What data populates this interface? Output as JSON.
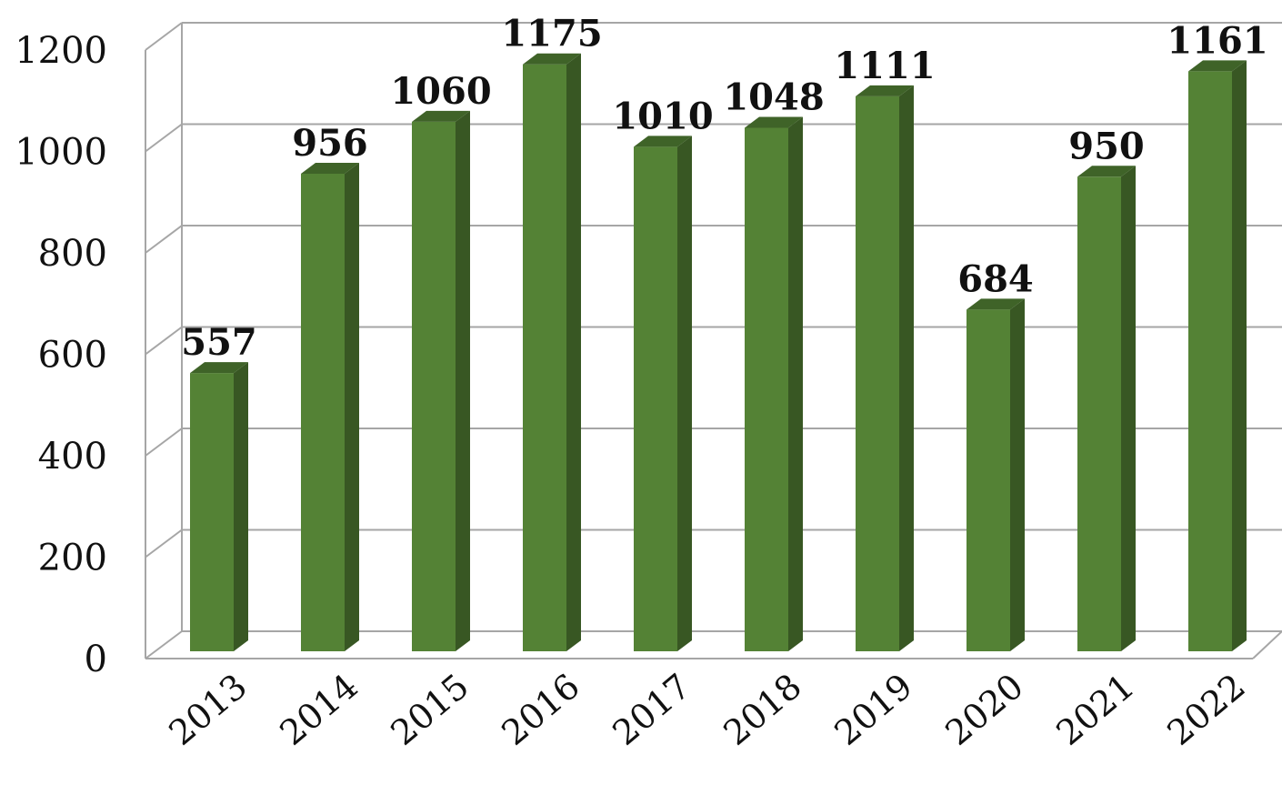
{
  "chart_data": {
    "type": "bar",
    "style": "3d",
    "categories": [
      "2013",
      "2014",
      "2015",
      "2016",
      "2017",
      "2018",
      "2019",
      "2020",
      "2021",
      "2022"
    ],
    "values": [
      557,
      956,
      1060,
      1175,
      1010,
      1048,
      1111,
      684,
      950,
      1161
    ],
    "ylim": [
      0,
      1200
    ],
    "yticks": [
      "0",
      "200",
      "400",
      "600",
      "800",
      "1000",
      "1200"
    ],
    "grid": true,
    "legend": "none",
    "title": "",
    "xlabel": "",
    "ylabel": "",
    "colors": {
      "bar_front": "#548235",
      "bar_side": "#385723",
      "bar_top": "#3F6328",
      "grid": "#A6A6A6",
      "text": "#111111"
    }
  }
}
